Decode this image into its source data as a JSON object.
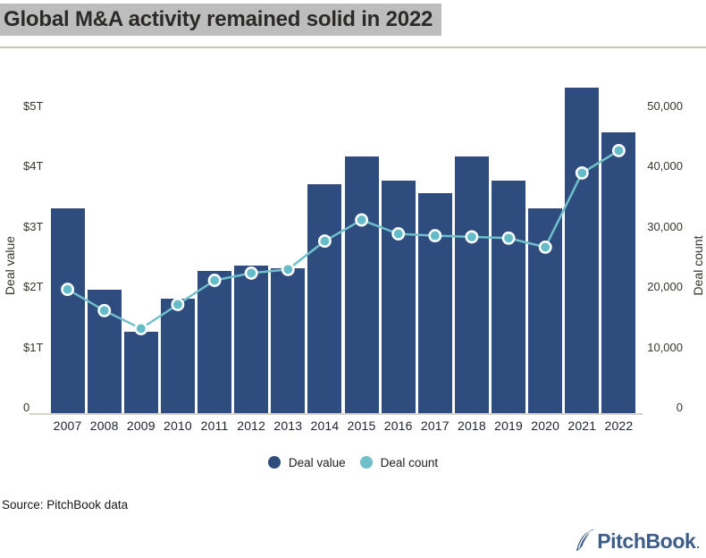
{
  "title": "Global M&A activity remained solid in 2022",
  "source": "Source: PitchBook data",
  "logo": {
    "text": "PitchBook",
    "suffix": ".",
    "color": "#3d5c88"
  },
  "colors": {
    "bar": "#2f4c7e",
    "line": "#6fc0cb",
    "dot_fill": "#64bcc8",
    "dot_ring": "#ffffff",
    "title_highlight": "#bdbdbd",
    "baseline": "#d7d4cb"
  },
  "legend": [
    {
      "label": "Deal value",
      "color": "#2f4c7e"
    },
    {
      "label": "Deal count",
      "color": "#6fc0cb"
    }
  ],
  "chart_data": {
    "type": "bar+line",
    "title": "Global M&A activity remained solid in 2022",
    "categories": [
      "2007",
      "2008",
      "2009",
      "2010",
      "2011",
      "2012",
      "2013",
      "2014",
      "2015",
      "2016",
      "2017",
      "2018",
      "2019",
      "2020",
      "2021",
      "2022"
    ],
    "series": [
      {
        "name": "Deal value",
        "type": "bar",
        "axis": "left",
        "unit": "trillions USD",
        "values": [
          3.4,
          2.05,
          1.35,
          1.9,
          2.35,
          2.45,
          2.4,
          3.8,
          4.25,
          3.85,
          3.65,
          4.25,
          3.85,
          3.4,
          5.4,
          4.65
        ]
      },
      {
        "name": "Deal count",
        "type": "line",
        "axis": "right",
        "unit": "deals",
        "values": [
          20500,
          17000,
          14000,
          18000,
          22000,
          23200,
          23800,
          28500,
          32000,
          29700,
          29400,
          29200,
          29000,
          27500,
          39800,
          43500
        ]
      }
    ],
    "left_axis": {
      "label": "Deal value",
      "tick_labels": [
        "$5T",
        "$4T",
        "$3T",
        "$2T",
        "$1T",
        "0"
      ],
      "tick_values": [
        5,
        4,
        3,
        2,
        1,
        0
      ],
      "range": [
        0,
        5.57
      ]
    },
    "right_axis": {
      "label": "Deal count",
      "tick_labels": [
        "50,000",
        "40,000",
        "30,000",
        "20,000",
        "10,000",
        "0"
      ],
      "tick_values": [
        50000,
        40000,
        30000,
        20000,
        10000,
        0
      ],
      "range": [
        0,
        55700
      ]
    },
    "grid": false,
    "legend_position": "bottom"
  }
}
